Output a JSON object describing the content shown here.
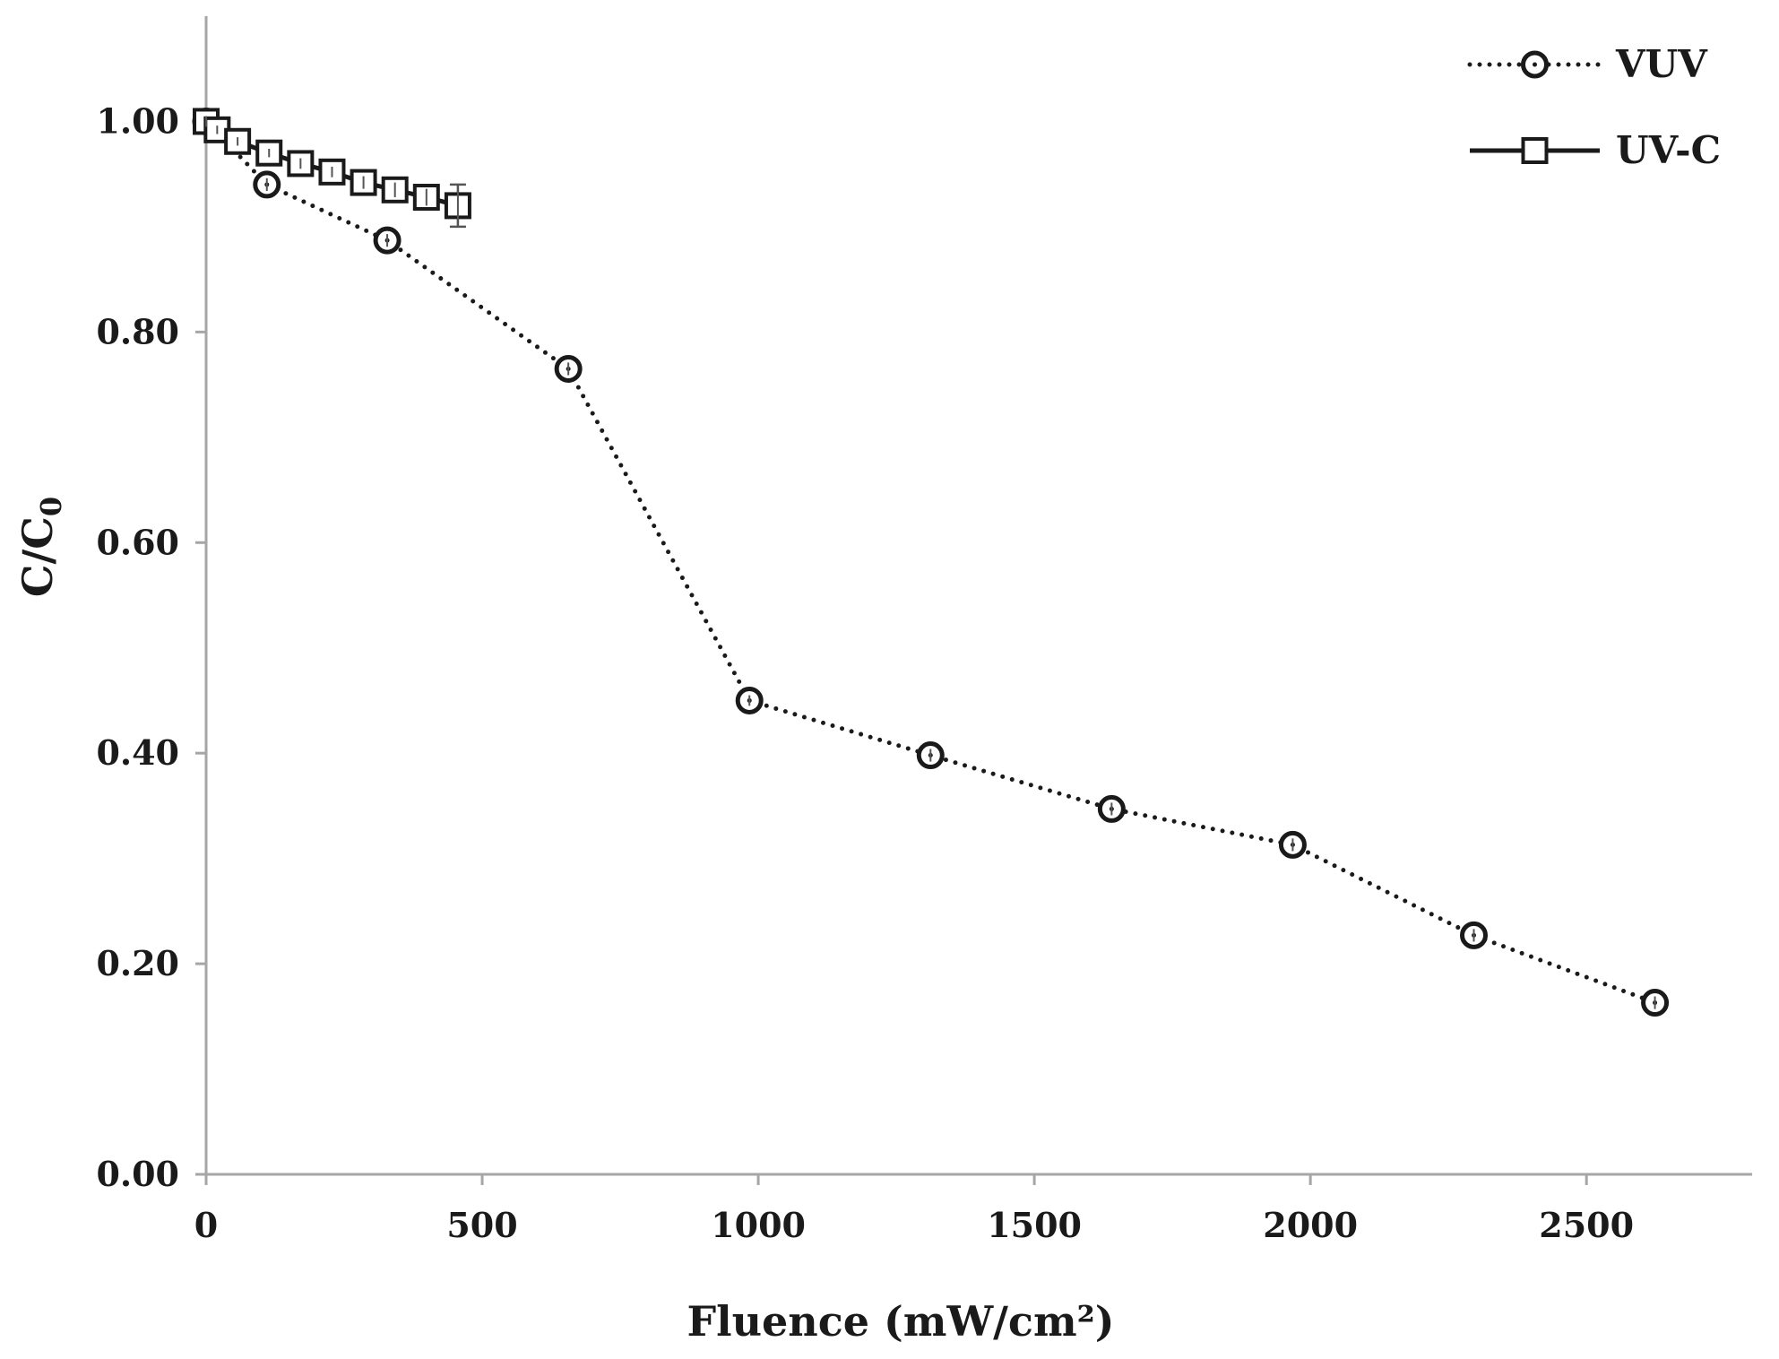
{
  "chart_data": {
    "type": "line",
    "xlabel": "Fluence (mW/cm²)",
    "ylabel": "C/C0",
    "xlim": [
      0,
      2800
    ],
    "ylim": [
      0,
      1.1
    ],
    "xticks": [
      0,
      500,
      1000,
      1500,
      2000,
      2500
    ],
    "yticks": [
      0,
      0.2,
      0.4,
      0.6,
      0.8,
      1.0
    ],
    "x_tick_labels": [
      "0",
      "500",
      "1000",
      "1500",
      "2000",
      "2500"
    ],
    "y_tick_labels": [
      "0.00",
      "0.20",
      "0.40",
      "0.60",
      "0.80",
      "1.00"
    ],
    "grid": false,
    "legend_position": "top-right",
    "series": [
      {
        "name": "VUV",
        "line_style": "dotted",
        "marker": "circle",
        "x": [
          0,
          110,
          328,
          656,
          984,
          1312,
          1640,
          1968,
          2296,
          2624
        ],
        "y": [
          1.0,
          0.94,
          0.887,
          0.765,
          0.45,
          0.398,
          0.347,
          0.313,
          0.227,
          0.163
        ],
        "error": [
          0.005,
          0.006,
          0.006,
          0.006,
          0.005,
          0.006,
          0.006,
          0.006,
          0.006,
          0.006
        ]
      },
      {
        "name": "UV-C",
        "line_style": "solid",
        "marker": "square",
        "x": [
          0,
          20,
          57,
          114,
          171,
          228,
          285,
          342,
          399,
          456
        ],
        "y": [
          1.0,
          0.992,
          0.981,
          0.97,
          0.96,
          0.952,
          0.942,
          0.935,
          0.928,
          0.92
        ],
        "error": [
          0.003,
          0.004,
          0.004,
          0.004,
          0.005,
          0.005,
          0.006,
          0.007,
          0.008,
          0.02
        ]
      }
    ]
  },
  "colors": {
    "axis": "#a6a6a6",
    "series": "#1a1a1a",
    "errorbar": "#555555"
  }
}
